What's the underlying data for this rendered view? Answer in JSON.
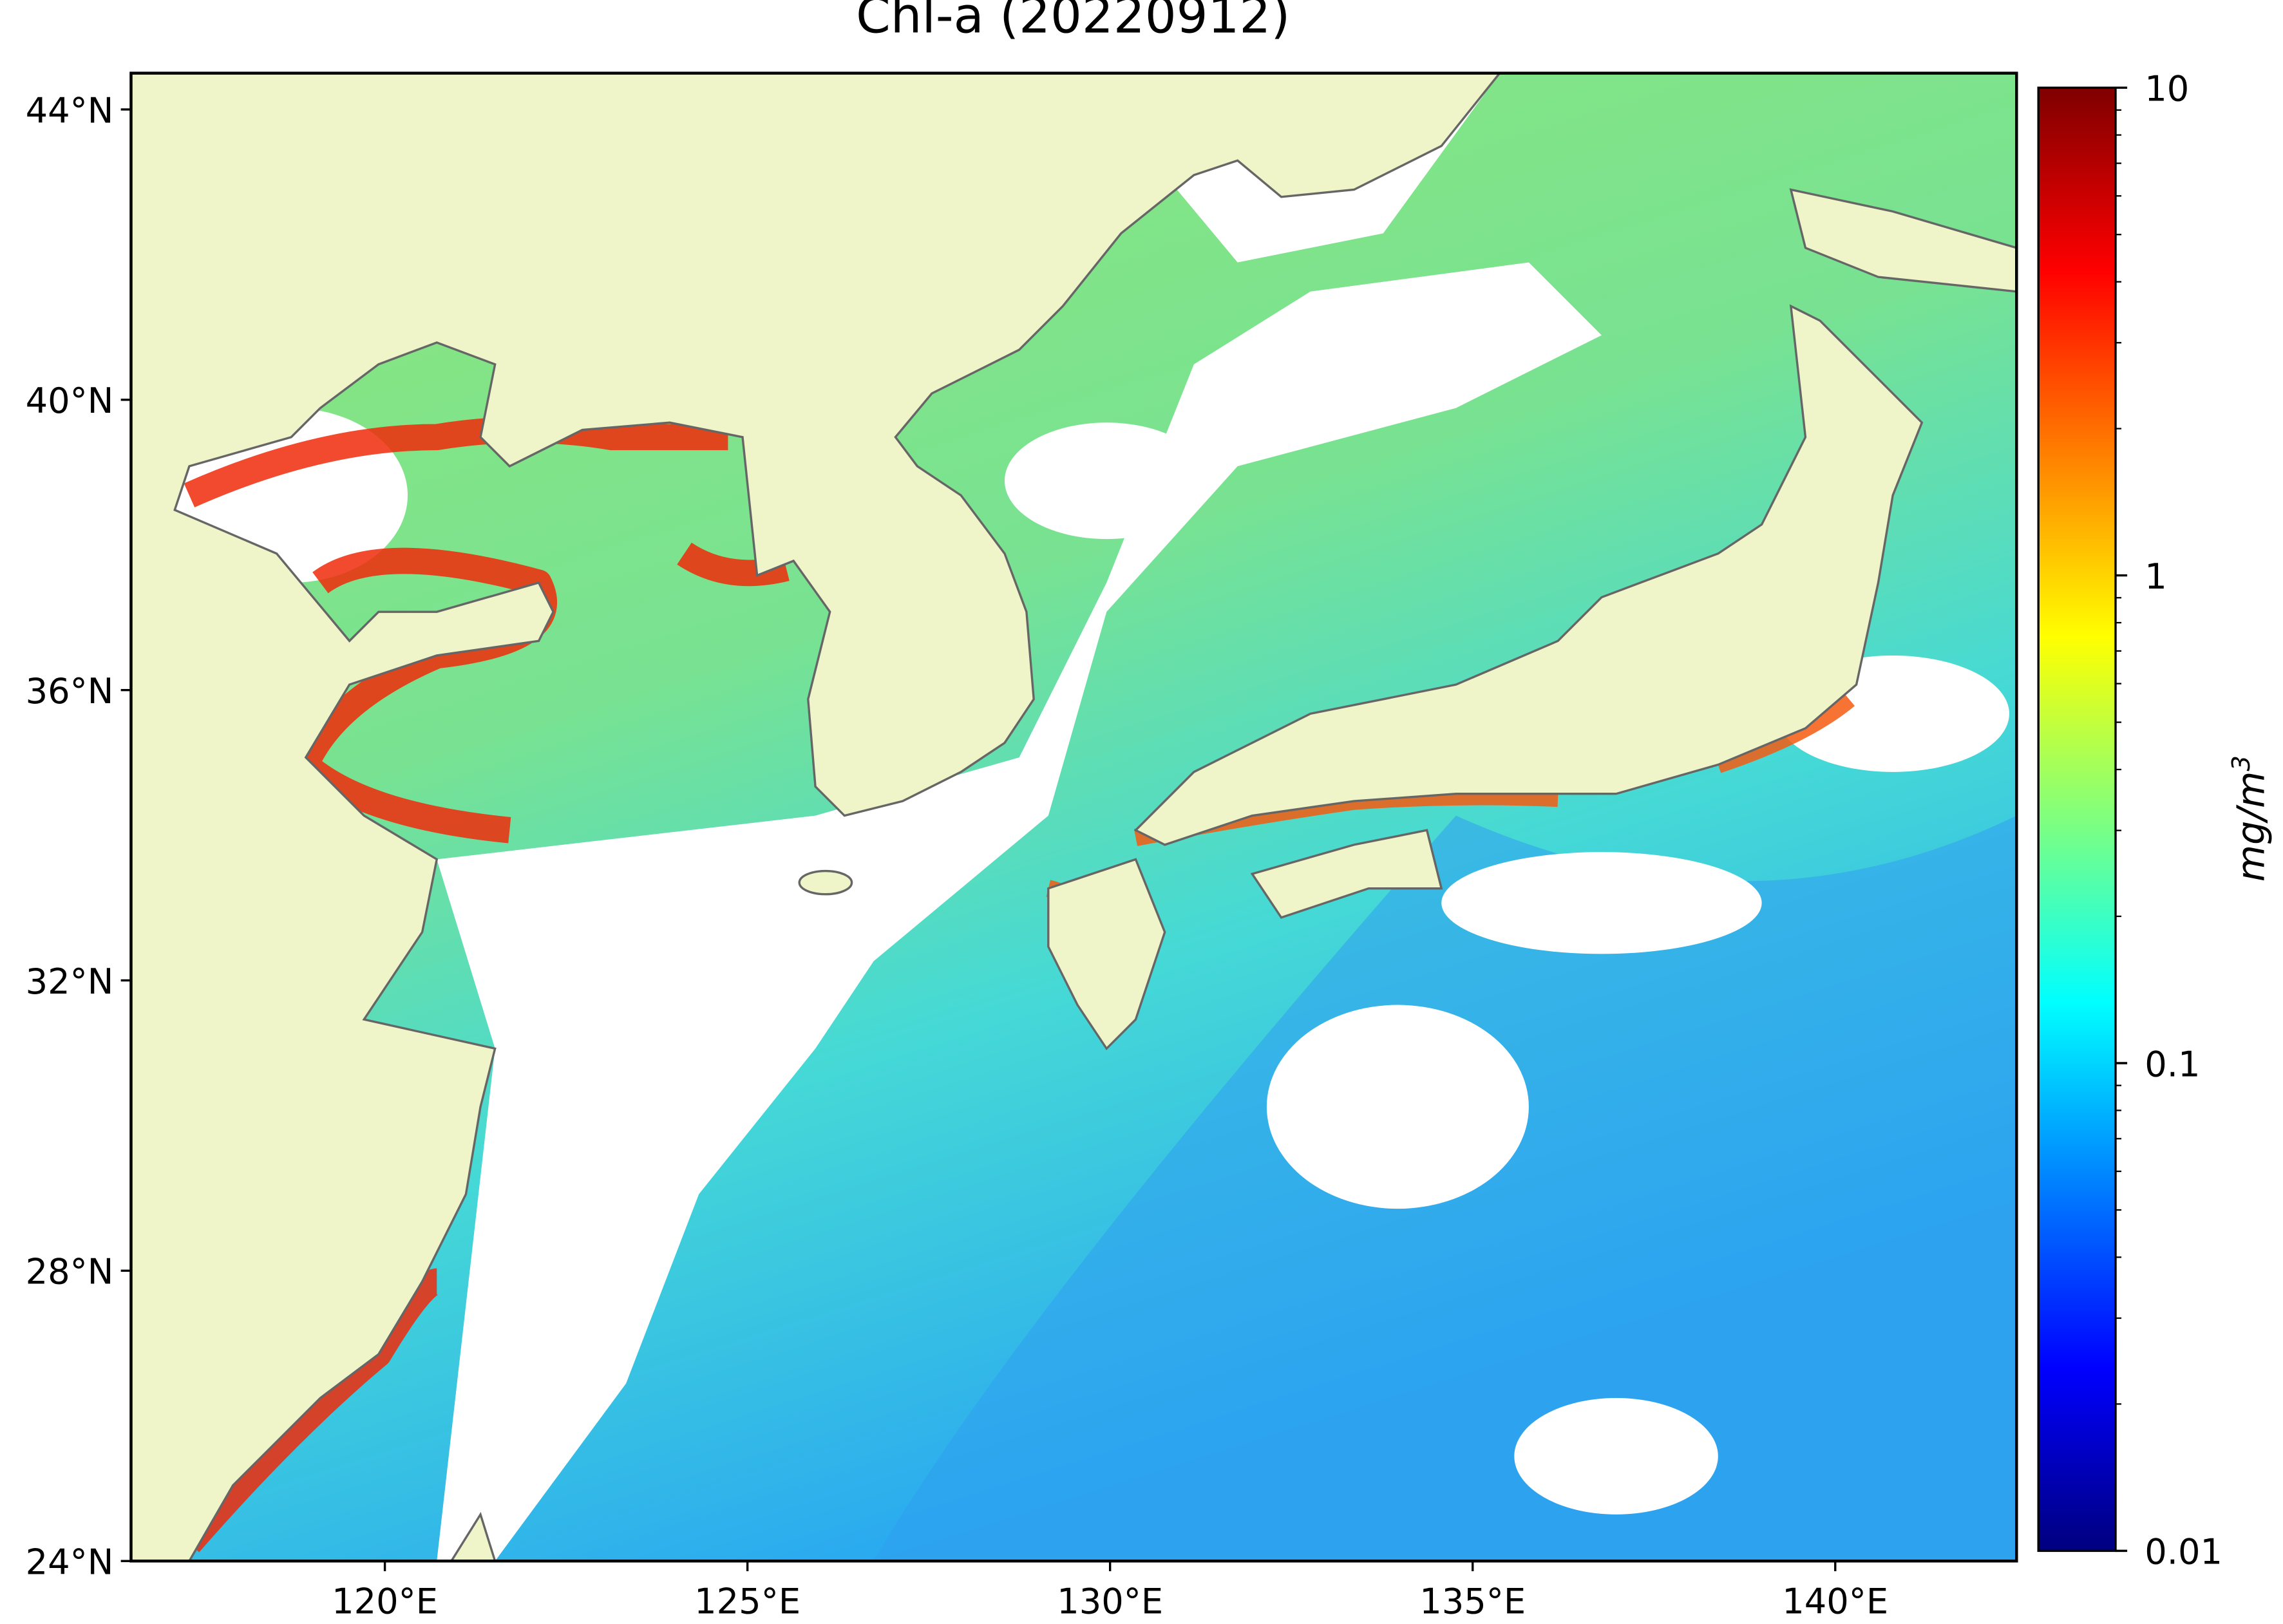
{
  "map_data": {
    "type": "map",
    "title": "Chl-a (20220912)",
    "xlim": [
      116.5,
      142.5
    ],
    "ylim": [
      24,
      44.5
    ],
    "xticks": [
      {
        "value": 120,
        "label": "120°E"
      },
      {
        "value": 125,
        "label": "125°E"
      },
      {
        "value": 130,
        "label": "130°E"
      },
      {
        "value": 135,
        "label": "135°E"
      },
      {
        "value": 140,
        "label": "140°E"
      }
    ],
    "yticks": [
      {
        "value": 24,
        "label": "24°N"
      },
      {
        "value": 28,
        "label": "28°N"
      },
      {
        "value": 32,
        "label": "32°N"
      },
      {
        "value": 36,
        "label": "36°N"
      },
      {
        "value": 40,
        "label": "40°N"
      },
      {
        "value": 44,
        "label": "44°N"
      }
    ],
    "colorbar": {
      "lim": [
        0.01,
        10
      ],
      "log": true,
      "ticks": [
        0.01,
        0.1,
        1,
        10
      ],
      "label": {
        "base": "mg/m",
        "exponent": "3"
      },
      "colors": [
        "#00007f",
        "#0000ff",
        "#007fff",
        "#00ffff",
        "#7fff7f",
        "#ffff00",
        "#ff7f00",
        "#ff0000",
        "#7f0000"
      ]
    }
  }
}
